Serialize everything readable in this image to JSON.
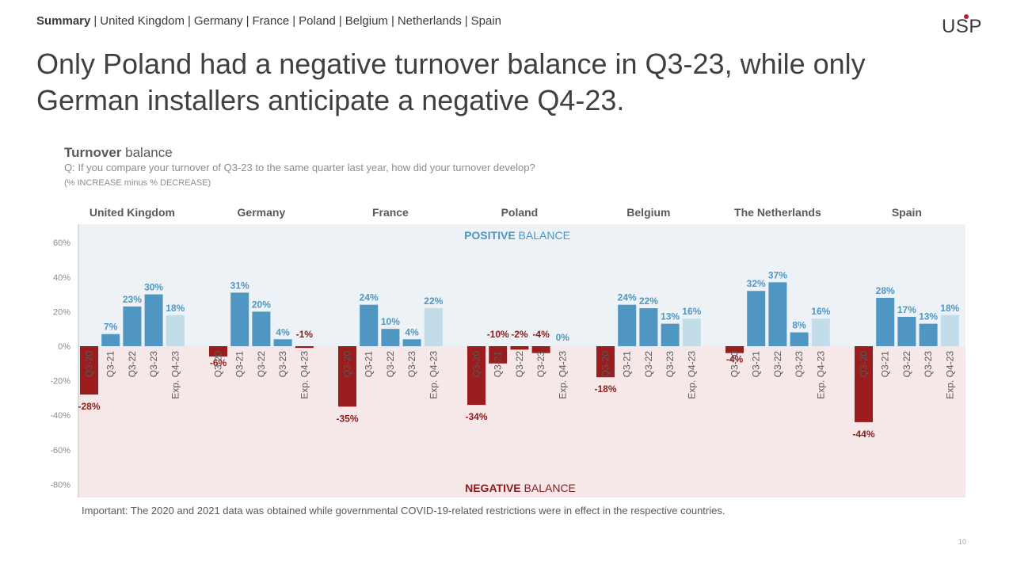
{
  "nav": {
    "active": "Summary",
    "items": [
      "United Kingdom",
      "Germany",
      "France",
      "Poland",
      "Belgium",
      "Netherlands",
      "Spain"
    ]
  },
  "logo": "USP",
  "headline": "Only Poland had a negative turnover balance in Q3-23, while only German installers anticipate a negative Q4-23.",
  "chart_title": {
    "bold": "Turnover",
    "rest": " balance"
  },
  "question": "Q: If you compare your turnover of Q3-23 to the same quarter last year, how did your turnover develop?",
  "note": "(% INCREASE minus % DECREASE)",
  "footnote": "Important: The 2020 and 2021 data was obtained while governmental COVID-19-related restrictions were in effect in the respective countries.",
  "page_number": "10",
  "chart_data": {
    "type": "bar",
    "y_ticks": [
      "60%",
      "40%",
      "20%",
      "0%",
      "-20%",
      "-40%",
      "-60%",
      "-80%"
    ],
    "ylim": [
      -80,
      60
    ],
    "positive_label": {
      "bold": "POSITIVE",
      "rest": " BALANCE"
    },
    "negative_label": {
      "bold": "NEGATIVE",
      "rest": " BALANCE"
    },
    "categories": [
      "Q3-20",
      "Q3-21",
      "Q3-22",
      "Q3-23",
      "Exp. Q4-23"
    ],
    "groups": [
      {
        "name": "United Kingdom",
        "values": [
          -28,
          7,
          23,
          30,
          18
        ],
        "labels": [
          "-28%",
          "7%",
          "23%",
          "30%",
          "18%"
        ]
      },
      {
        "name": "Germany",
        "values": [
          -6,
          31,
          20,
          4,
          -1
        ],
        "labels": [
          "-6%",
          "31%",
          "20%",
          "4%",
          "-1%"
        ]
      },
      {
        "name": "France",
        "values": [
          -35,
          24,
          10,
          4,
          22
        ],
        "labels": [
          "-35%",
          "24%",
          "10%",
          "4%",
          "22%"
        ]
      },
      {
        "name": "Poland",
        "values": [
          -34,
          -10,
          -2,
          -4,
          0
        ],
        "labels": [
          "-34%",
          "-10%",
          "-2%",
          "-4%",
          "0%"
        ]
      },
      {
        "name": "Belgium",
        "values": [
          -18,
          24,
          22,
          13,
          16
        ],
        "labels": [
          "-18%",
          "24%",
          "22%",
          "13%",
          "16%"
        ]
      },
      {
        "name": "The Netherlands",
        "values": [
          -4,
          32,
          37,
          8,
          16
        ],
        "labels": [
          "-4%",
          "32%",
          "37%",
          "8%",
          "16%"
        ]
      },
      {
        "name": "Spain",
        "values": [
          -44,
          28,
          17,
          13,
          18
        ],
        "labels": [
          "-44%",
          "28%",
          "17%",
          "13%",
          "18%"
        ]
      }
    ],
    "colors": {
      "positive_bar": "#4f96c2",
      "expected_bar": "#c3dcea",
      "negative_bar": "#9b1c1c",
      "positive_text": "#4f96c2",
      "negative_text": "#8b1a1a",
      "positive_bg": "#edf2f6",
      "negative_bg": "#f6e8e8",
      "heading": "#595959"
    }
  }
}
